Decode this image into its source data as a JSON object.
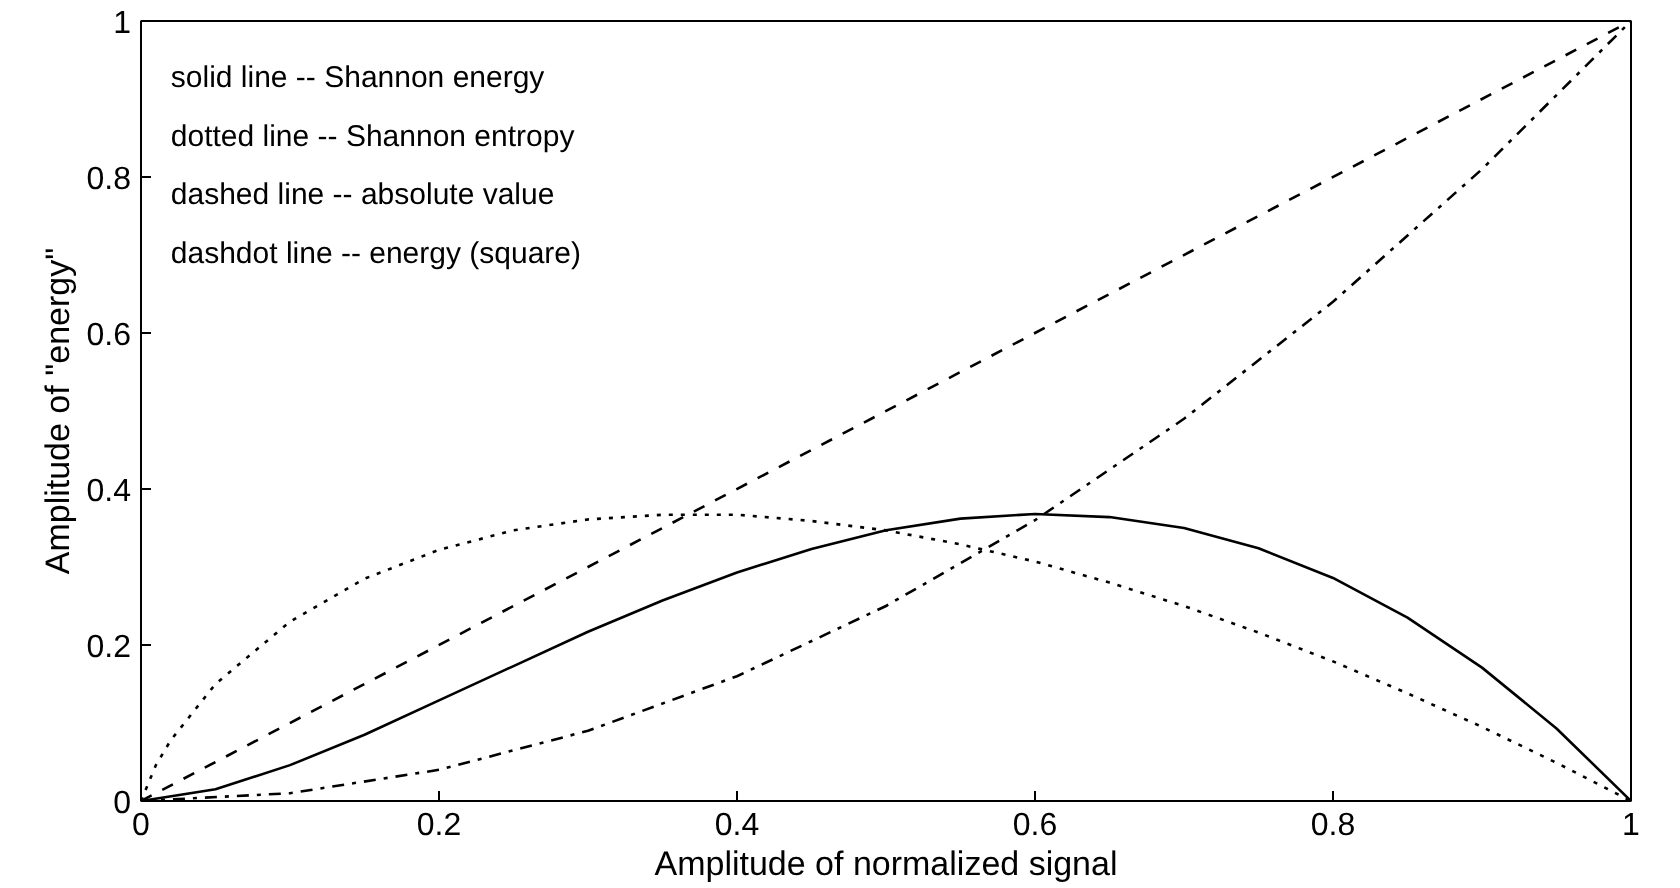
{
  "chart_data": {
    "type": "line",
    "xlabel": "Amplitude of normalized signal",
    "ylabel": "Amplitude of \"energy\"",
    "xlim": [
      0,
      1
    ],
    "ylim": [
      0,
      1
    ],
    "xticks": [
      0,
      0.2,
      0.4,
      0.6,
      0.8,
      1
    ],
    "yticks": [
      0,
      0.2,
      0.4,
      0.6,
      0.8,
      1
    ],
    "grid": false,
    "annotations": [
      "solid   line -- Shannon energy",
      "dotted  line -- Shannon entropy",
      "dashed  line -- absolute value",
      "dashdot line -- energy (square)"
    ],
    "series": [
      {
        "color": "#000000",
        "line_style": "solid",
        "x": [
          0,
          0.05,
          0.1,
          0.15,
          0.2,
          0.25,
          0.3,
          0.35,
          0.4,
          0.45,
          0.5,
          0.55,
          0.6,
          0.65,
          0.7,
          0.75,
          0.8,
          0.85,
          0.9,
          0.95,
          1
        ],
        "values": [
          0,
          0.015,
          0.046,
          0.085,
          0.129,
          0.173,
          0.217,
          0.257,
          0.293,
          0.323,
          0.347,
          0.362,
          0.368,
          0.364,
          0.35,
          0.324,
          0.286,
          0.235,
          0.171,
          0.093,
          0
        ]
      },
      {
        "color": "#000000",
        "line_style": "dotted",
        "x": [
          0,
          0.01,
          0.02,
          0.05,
          0.1,
          0.15,
          0.2,
          0.25,
          0.3,
          0.35,
          0.4,
          0.45,
          0.5,
          0.55,
          0.6,
          0.65,
          0.7,
          0.75,
          0.8,
          0.85,
          0.9,
          0.95,
          1
        ],
        "values": [
          0,
          0.046,
          0.078,
          0.15,
          0.23,
          0.285,
          0.322,
          0.347,
          0.361,
          0.367,
          0.367,
          0.359,
          0.347,
          0.329,
          0.307,
          0.28,
          0.25,
          0.216,
          0.179,
          0.138,
          0.095,
          0.049,
          0
        ]
      },
      {
        "color": "#000000",
        "line_style": "dashed",
        "x": [
          0,
          1
        ],
        "values": [
          0,
          1
        ]
      },
      {
        "color": "#000000",
        "line_style": "dashdot",
        "x": [
          0,
          0.1,
          0.2,
          0.3,
          0.4,
          0.5,
          0.6,
          0.7,
          0.8,
          0.9,
          1
        ],
        "values": [
          0,
          0.01,
          0.04,
          0.09,
          0.16,
          0.25,
          0.36,
          0.49,
          0.64,
          0.81,
          1
        ]
      }
    ]
  }
}
